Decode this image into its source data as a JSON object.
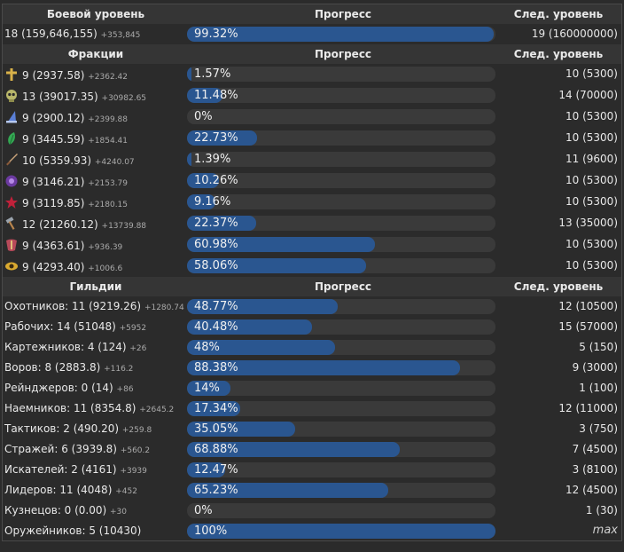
{
  "combat": {
    "header": {
      "col1": "Боевой уровень",
      "col2": "Прогресс",
      "col3": "След. уровень"
    },
    "row": {
      "label": "18 (159,646,155)",
      "inc": "+353,845",
      "pct": "99.32%",
      "frac": 0.9932,
      "next": "19 (160000000)"
    }
  },
  "factions": {
    "header": {
      "col1": "Фракции",
      "col2": "Прогресс",
      "col3": "След. уровень"
    },
    "rows": [
      {
        "icon": "cross-icon",
        "label": "9 (2937.58)",
        "inc": "+2362.42",
        "pct": "1.57%",
        "frac": 0.0157,
        "next": "10 (5300)"
      },
      {
        "icon": "skull-icon",
        "label": "13 (39017.35)",
        "inc": "+30982.65",
        "pct": "11.48%",
        "frac": 0.1148,
        "next": "14 (70000)"
      },
      {
        "icon": "wizard-hat-icon",
        "label": "9 (2900.12)",
        "inc": "+2399.88",
        "pct": "0%",
        "frac": 0,
        "next": "10 (5300)"
      },
      {
        "icon": "leaf-icon",
        "label": "9 (3445.59)",
        "inc": "+1854.41",
        "pct": "22.73%",
        "frac": 0.2273,
        "next": "10 (5300)"
      },
      {
        "icon": "sword-icon",
        "label": "10 (5359.93)",
        "inc": "+4240.07",
        "pct": "1.39%",
        "frac": 0.0139,
        "next": "11 (9600)"
      },
      {
        "icon": "purple-orb-icon",
        "label": "9 (3146.21)",
        "inc": "+2153.79",
        "pct": "10.26%",
        "frac": 0.1026,
        "next": "10 (5300)"
      },
      {
        "icon": "demon-star-icon",
        "label": "9 (3119.85)",
        "inc": "+2180.15",
        "pct": "9.16%",
        "frac": 0.0916,
        "next": "10 (5300)"
      },
      {
        "icon": "hammer-icon",
        "label": "12 (21260.12)",
        "inc": "+13739.88",
        "pct": "22.37%",
        "frac": 0.2237,
        "next": "13 (35000)"
      },
      {
        "icon": "mask-icon",
        "label": "9 (4363.61)",
        "inc": "+936.39",
        "pct": "60.98%",
        "frac": 0.6098,
        "next": "10 (5300)"
      },
      {
        "icon": "eye-icon",
        "label": "9 (4293.40)",
        "inc": "+1006.6",
        "pct": "58.06%",
        "frac": 0.5806,
        "next": "10 (5300)"
      }
    ]
  },
  "guilds": {
    "header": {
      "col1": "Гильдии",
      "col2": "Прогресс",
      "col3": "След. уровень"
    },
    "rows": [
      {
        "label": "Охотников: 11 (9219.26)",
        "inc": "+1280.74",
        "pct": "48.77%",
        "frac": 0.4877,
        "next": "12 (10500)"
      },
      {
        "label": "Рабочих: 14 (51048)",
        "inc": "+5952",
        "pct": "40.48%",
        "frac": 0.4048,
        "next": "15 (57000)"
      },
      {
        "label": "Картежников: 4 (124)",
        "inc": "+26",
        "pct": "48%",
        "frac": 0.48,
        "next": "5 (150)"
      },
      {
        "label": "Воров: 8 (2883.8)",
        "inc": "+116.2",
        "pct": "88.38%",
        "frac": 0.8838,
        "next": "9 (3000)"
      },
      {
        "label": "Рейнджеров: 0 (14)",
        "inc": "+86",
        "pct": "14%",
        "frac": 0.14,
        "next": "1 (100)"
      },
      {
        "label": "Наемников: 11 (8354.8)",
        "inc": "+2645.2",
        "pct": "17.34%",
        "frac": 0.1734,
        "next": "12 (11000)"
      },
      {
        "label": "Тактиков: 2 (490.20)",
        "inc": "+259.8",
        "pct": "35.05%",
        "frac": 0.3505,
        "next": "3 (750)"
      },
      {
        "label": "Стражей: 6 (3939.8)",
        "inc": "+560.2",
        "pct": "68.88%",
        "frac": 0.6888,
        "next": "7 (4500)"
      },
      {
        "label": "Искателей: 2 (4161)",
        "inc": "+3939",
        "pct": "12.47%",
        "frac": 0.1247,
        "next": "3 (8100)"
      },
      {
        "label": "Лидеров: 11 (4048)",
        "inc": "+452",
        "pct": "65.23%",
        "frac": 0.6523,
        "next": "12 (4500)"
      },
      {
        "label": "Кузнецов: 0 (0.00)",
        "inc": "+30",
        "pct": "0%",
        "frac": 0,
        "next": "1 (30)"
      },
      {
        "label": "Оружейников: 5 (10430)",
        "inc": "",
        "pct": "100%",
        "frac": 1.0,
        "next": "max",
        "isMax": true
      }
    ]
  },
  "colors": {
    "bar_fill": "#2a5690",
    "bar_track": "#3a3a3a",
    "header_bg": "#353535"
  }
}
